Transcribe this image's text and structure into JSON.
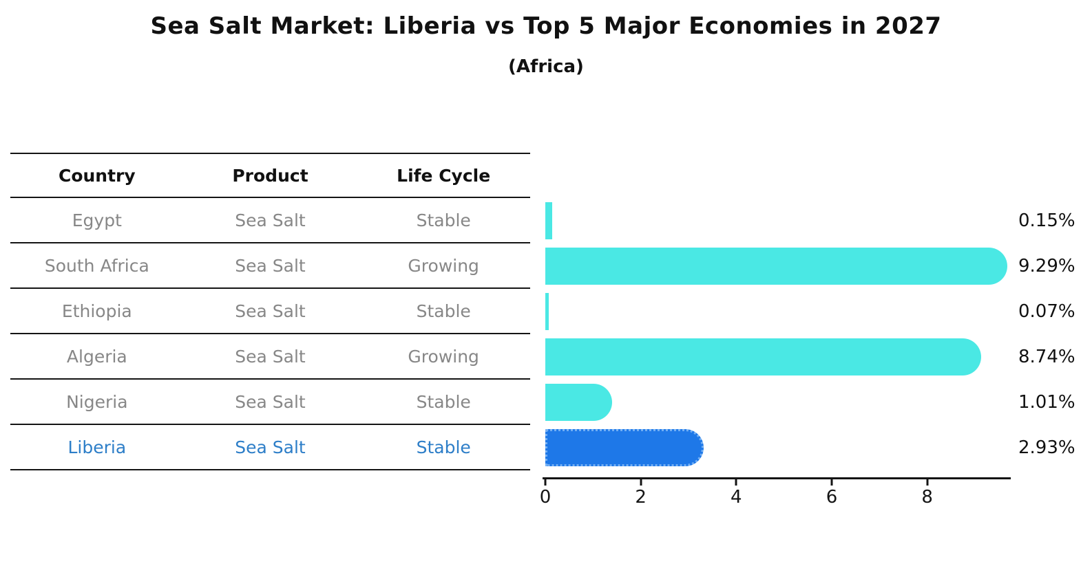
{
  "title": "Sea Salt Market: Liberia vs Top 5 Major Economies in 2027",
  "subtitle": "(Africa)",
  "table": {
    "headers": [
      "Country",
      "Product",
      "Life Cycle"
    ],
    "rows": [
      {
        "country": "Egypt",
        "product": "Sea Salt",
        "life_cycle": "Stable",
        "highlight": false
      },
      {
        "country": "South Africa",
        "product": "Sea Salt",
        "life_cycle": "Growing",
        "highlight": false
      },
      {
        "country": "Ethiopia",
        "product": "Sea Salt",
        "life_cycle": "Stable",
        "highlight": false
      },
      {
        "country": "Algeria",
        "product": "Sea Salt",
        "life_cycle": "Growing",
        "highlight": false
      },
      {
        "country": "Nigeria",
        "product": "Sea Salt",
        "life_cycle": "Stable",
        "highlight": false
      },
      {
        "country": "Liberia",
        "product": "Sea Salt",
        "life_cycle": "Stable",
        "highlight": true
      }
    ]
  },
  "chart_data": {
    "type": "bar",
    "orientation": "horizontal",
    "title": "Sea Salt Market: Liberia vs Top 5 Major Economies in 2027",
    "subtitle": "(Africa)",
    "categories": [
      "Egypt",
      "South Africa",
      "Ethiopia",
      "Algeria",
      "Nigeria",
      "Liberia"
    ],
    "values": [
      0.15,
      9.29,
      0.07,
      8.74,
      1.01,
      2.93
    ],
    "value_labels": [
      "0.15%",
      "9.29%",
      "0.07%",
      "8.74%",
      "1.01%",
      "2.93%"
    ],
    "highlight_index": 5,
    "xlabel": "",
    "ylabel": "",
    "xlim": [
      0,
      9.75
    ],
    "x_ticks": [
      0,
      2,
      4,
      6,
      8
    ],
    "grid": false,
    "legend": "none",
    "colors": {
      "bar": "#4ae8e4",
      "highlight_bar": "#1e78e8",
      "highlight_bar_border": "#74b0f4",
      "row_text": "#878787",
      "highlight_text": "#2d7ec8",
      "header_text": "#111111",
      "line": "#141414",
      "value_label_text": "#111111"
    }
  }
}
